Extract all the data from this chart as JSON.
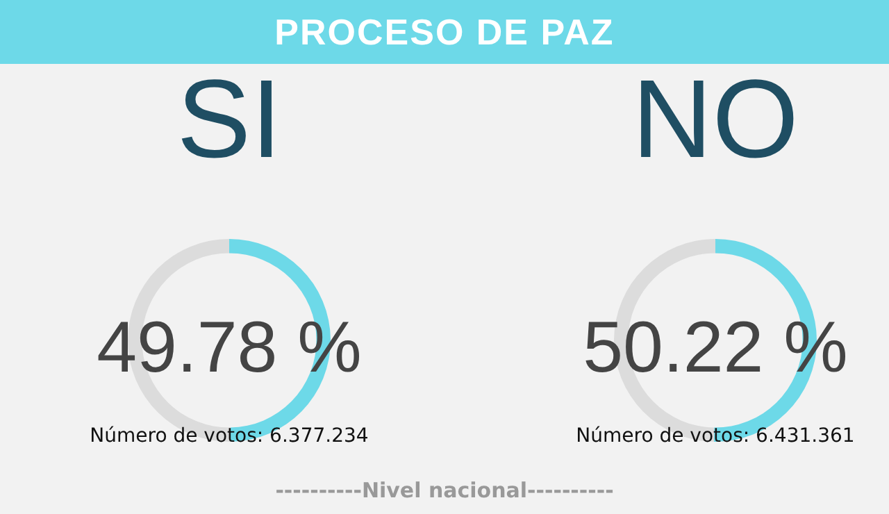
{
  "chart_data": [
    {
      "type": "other",
      "title": "PROCESO DE PAZ",
      "annotations": [
        "----------Nivel nacional----------"
      ]
    },
    {
      "type": "donut",
      "title": "SI",
      "categories": [
        null,
        null
      ],
      "values": [
        49.78,
        50.22
      ],
      "colors": [
        "#6dd9e8",
        "#dcdcdc"
      ],
      "value_labels": [
        "49.78 %",
        null
      ],
      "annotations": [
        "Número de votos: 6.377.234"
      ]
    },
    {
      "type": "donut",
      "title": "NO",
      "categories": [
        null,
        null
      ],
      "values": [
        50.22,
        49.78
      ],
      "colors": [
        "#6dd9e8",
        "#dcdcdc"
      ],
      "value_labels": [
        "50.22 %",
        null
      ],
      "annotations": [
        "Número de votos: 6.431.361"
      ]
    }
  ]
}
